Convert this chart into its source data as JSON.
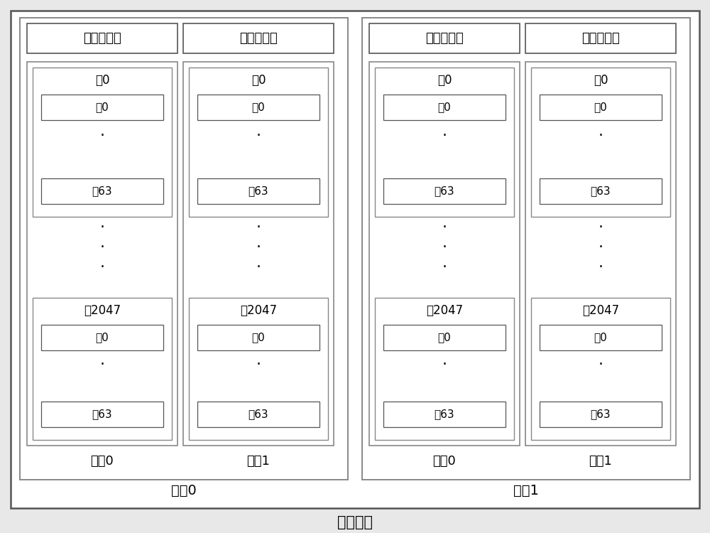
{
  "fig_width": 10.0,
  "fig_height": 7.5,
  "bg_color": "#e8e8e8",
  "outer_bg": "#ffffff",
  "box_ec": "#888888",
  "box_ec_dark": "#555555",
  "text_color": "#000000",
  "title_bottom": "闪存芯片",
  "wafer_labels": [
    "晶圶0",
    "晶圶1"
  ],
  "group_labels": [
    "分组0",
    "分组1",
    "分组0",
    "分组1"
  ],
  "register_label": "数据寄存器",
  "block0_label": "块0",
  "block2047_label": "块2047",
  "page0_label": "鸿0",
  "page63_label": "鸿63",
  "font_size_reg": 13,
  "font_size_block": 12,
  "font_size_page": 11,
  "font_size_group": 13,
  "font_size_wafer": 14,
  "font_size_title": 15,
  "font_size_dot": 16,
  "lw_outer": 1.8,
  "lw_wafer": 1.4,
  "lw_col": 1.2,
  "lw_block": 1.0,
  "lw_page": 0.9
}
